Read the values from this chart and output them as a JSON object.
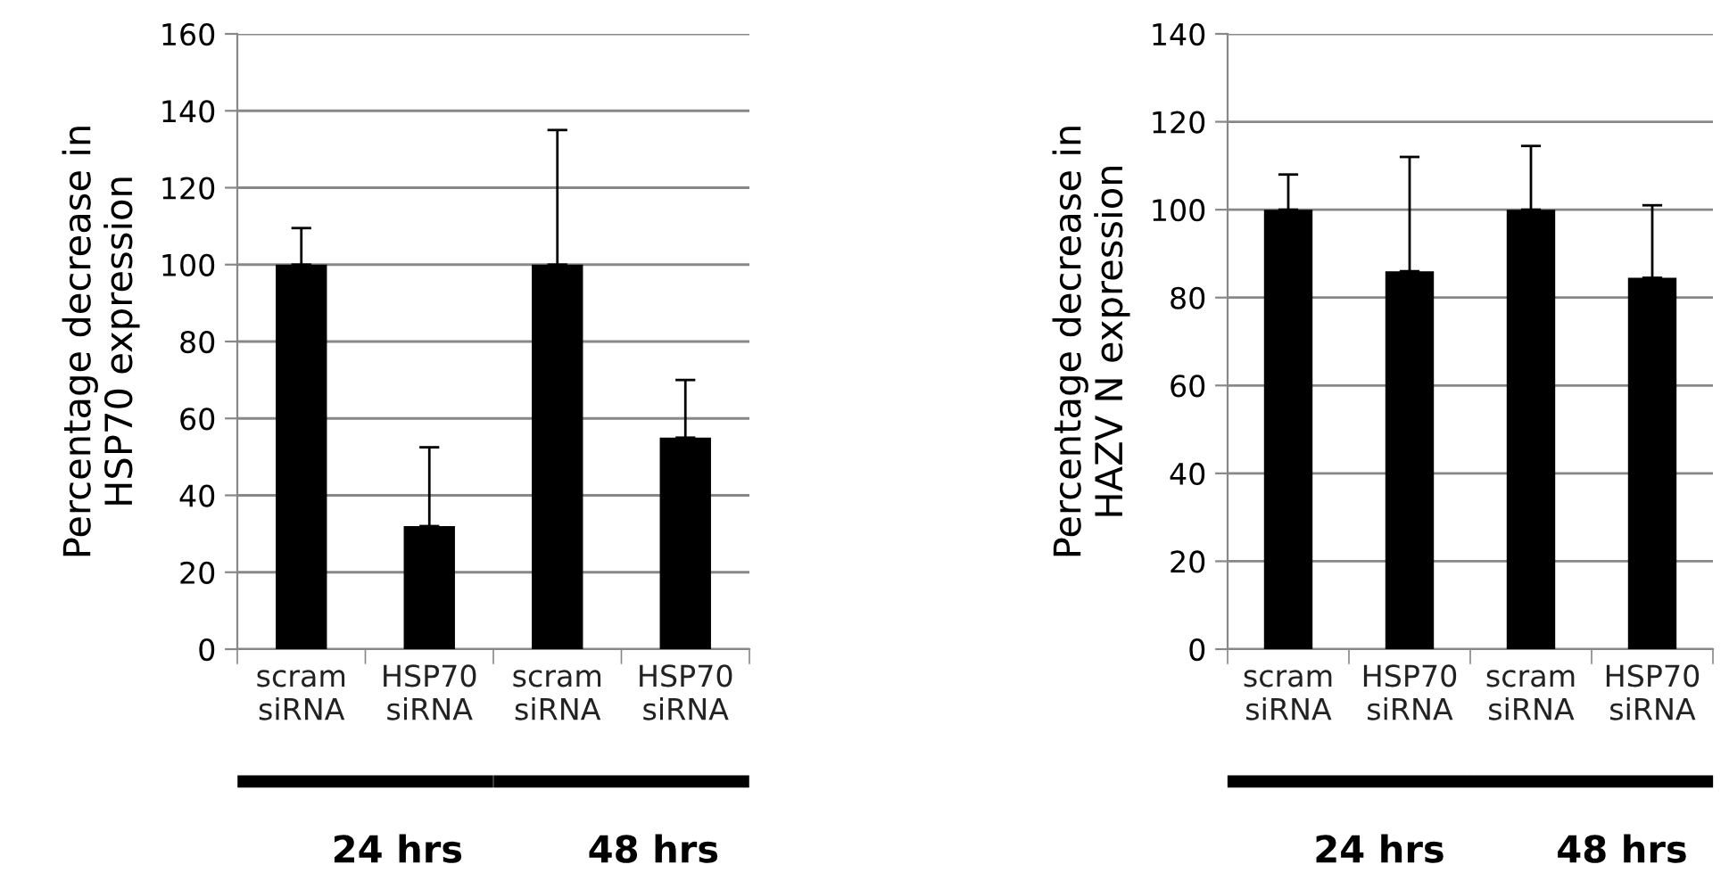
{
  "chart_data": [
    {
      "type": "bar",
      "ylabel": "Percentage decrease in\nHSP70 expression",
      "categories": [
        "scram\nsiRNA",
        "HSP70\nsiRNA",
        "scram\nsiRNA",
        "HSP70\nsiRNA"
      ],
      "values": [
        100,
        32,
        100,
        55
      ],
      "color": "#000000",
      "errors": [
        [
          100,
          109.5
        ],
        [
          32,
          52.5
        ],
        [
          100,
          135
        ],
        [
          55,
          70
        ]
      ],
      "ylim": [
        0,
        160
      ],
      "yticks": [
        0,
        20,
        40,
        60,
        80,
        100,
        120,
        140,
        160
      ],
      "grid": "y",
      "annotations": [
        "24 hrs",
        "48 hrs"
      ]
    },
    {
      "type": "bar",
      "ylabel": "Percentage decrease in\nHAZV N expression",
      "categories": [
        "scram\nsiRNA",
        "HSP70\nsiRNA",
        "scram\nsiRNA",
        "HSP70\nsiRNA"
      ],
      "values": [
        100,
        86,
        100,
        84.5
      ],
      "color": "#000000",
      "errors": [
        [
          100,
          108
        ],
        [
          86,
          112
        ],
        [
          100,
          114.5
        ],
        [
          84.5,
          101
        ]
      ],
      "ylim": [
        0,
        140
      ],
      "yticks": [
        0,
        20,
        40,
        60,
        80,
        100,
        120,
        140
      ],
      "grid": "y",
      "annotations": [
        "24 hrs",
        "48 hrs"
      ]
    }
  ]
}
